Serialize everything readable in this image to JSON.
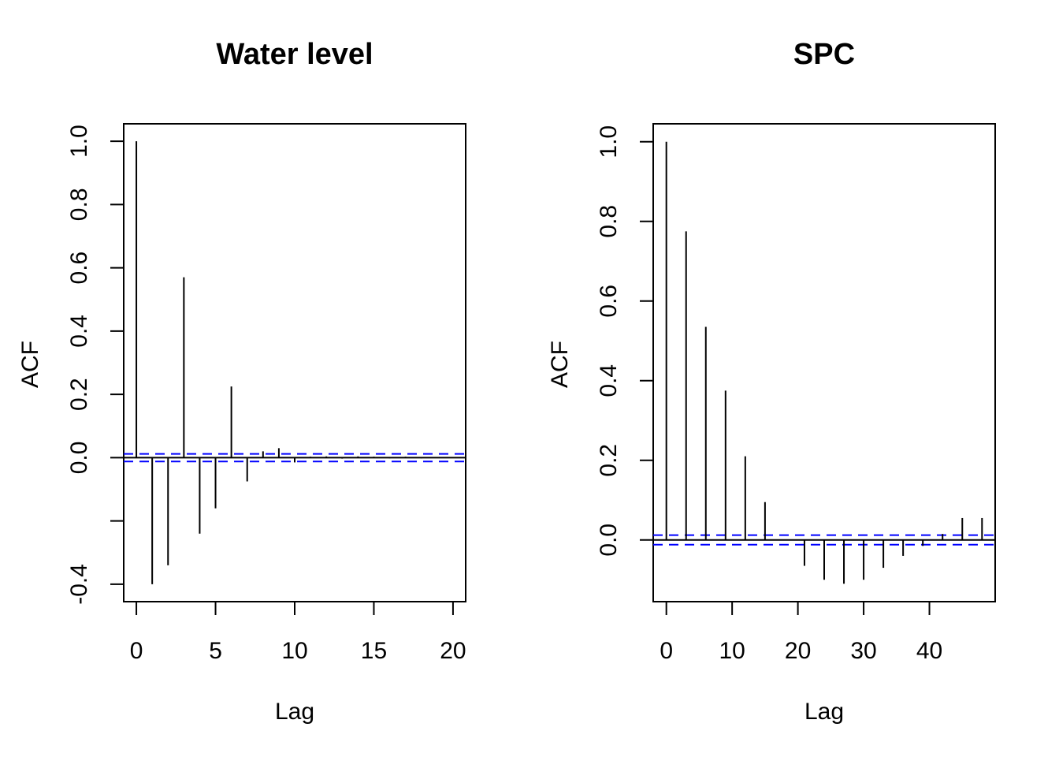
{
  "chart_data": [
    {
      "type": "bar",
      "title": "Water level",
      "xlabel": "Lag",
      "ylabel": "ACF",
      "xlim": [
        -0.8,
        20.8
      ],
      "ylim": [
        -0.455,
        1.055
      ],
      "xticks": [
        "0",
        "5",
        "10",
        "15",
        "20"
      ],
      "xtick_values": [
        0,
        5,
        10,
        15,
        20
      ],
      "yticks": [
        "-0.4",
        "",
        "0.0",
        "0.2",
        "0.4",
        "0.6",
        "0.8",
        "1.0"
      ],
      "ytick_values": [
        -0.4,
        -0.2,
        0.0,
        0.2,
        0.4,
        0.6,
        0.8,
        1.0
      ],
      "lags": [
        0,
        1,
        2,
        3,
        4,
        5,
        6,
        7,
        8,
        9,
        10,
        11,
        12,
        13,
        14,
        15,
        16,
        17,
        18,
        19,
        20
      ],
      "values": [
        1.0,
        -0.4,
        -0.34,
        0.57,
        -0.24,
        -0.16,
        0.225,
        -0.075,
        0.02,
        0.03,
        -0.015,
        0.003,
        0.004,
        -0.003,
        0.004,
        0.003,
        -0.002,
        0.003,
        -0.002,
        0.002,
        0.001
      ],
      "ci": 0.012,
      "grid": false,
      "ci_color": "#0000ff",
      "bar_color": "#000000"
    },
    {
      "type": "bar",
      "title": "SPC",
      "xlabel": "Lag",
      "ylabel": "ACF",
      "xlim": [
        -2,
        50
      ],
      "ylim": [
        -0.155,
        1.045
      ],
      "xticks": [
        "0",
        "10",
        "20",
        "30",
        "40"
      ],
      "xtick_values": [
        0,
        10,
        20,
        30,
        40
      ],
      "yticks": [
        "0.0",
        "0.2",
        "0.4",
        "0.6",
        "0.8",
        "1.0"
      ],
      "ytick_values": [
        0.0,
        0.2,
        0.4,
        0.6,
        0.8,
        1.0
      ],
      "lags": [
        0,
        3,
        6,
        9,
        12,
        15,
        18,
        21,
        24,
        27,
        30,
        33,
        36,
        39,
        42,
        45,
        48
      ],
      "values": [
        1.0,
        0.775,
        0.535,
        0.375,
        0.21,
        0.095,
        0.0,
        -0.065,
        -0.1,
        -0.11,
        -0.1,
        -0.07,
        -0.04,
        -0.015,
        0.015,
        0.055,
        0.055
      ],
      "ci": 0.012,
      "grid": false,
      "ci_color": "#0000ff",
      "bar_color": "#000000"
    }
  ]
}
